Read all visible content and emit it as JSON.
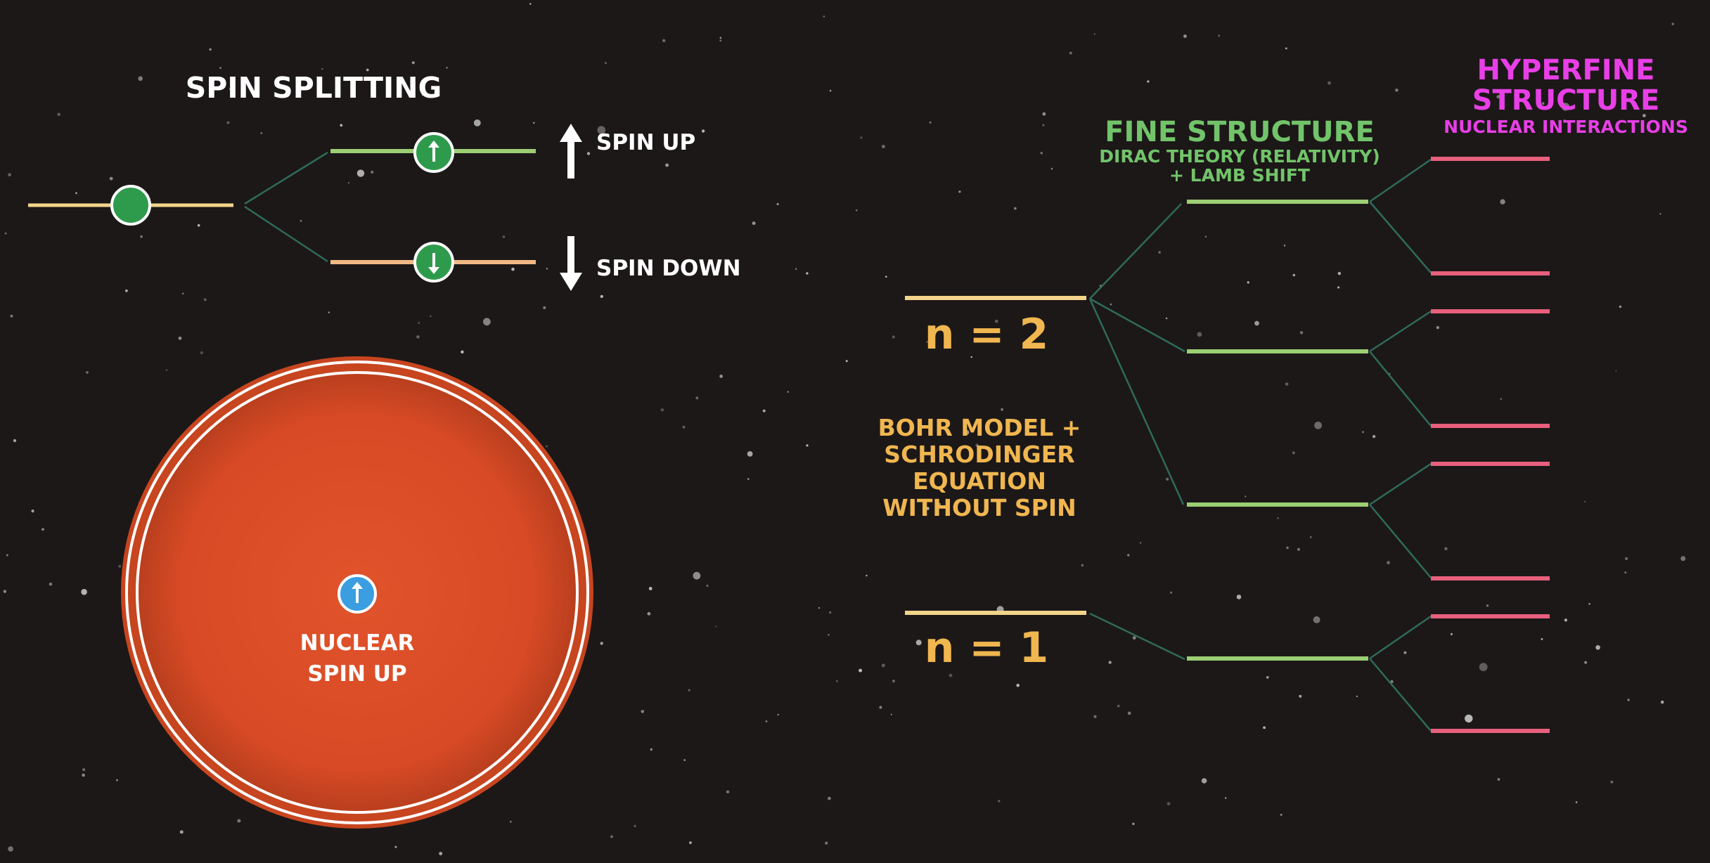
{
  "spin_splitting": {
    "title": "SPIN SPLITTING",
    "up_label": "SPIN UP",
    "down_label": "SPIN DOWN"
  },
  "nucleus": {
    "line1": "NUCLEAR",
    "line2": "SPIN UP"
  },
  "energy_levels": {
    "n2_label": "n = 2",
    "n1_label": "n = 1",
    "bohr_label": [
      "BOHR MODEL +",
      "SCHRODINGER",
      "EQUATION",
      "WITHOUT SPIN"
    ]
  },
  "fine_structure": {
    "title": "FINE STRUCTURE",
    "subtitle_line1": "DIRAC THEORY (RELATIVITY)",
    "subtitle_line2": "+ LAMB SHIFT"
  },
  "hyperfine_structure": {
    "title_line1": "HYPERFINE",
    "title_line2": "STRUCTURE",
    "subtitle": "NUCLEAR INTERACTIONS"
  },
  "colors": {
    "background": "#1c1818",
    "unperturbed_level": "#f2d48a",
    "fine_level": "#9ccf74",
    "hyperfine_level": "#e8607c",
    "connector": "#2f6b5b",
    "electron": "#2e9b4c",
    "nucleus": "#d9492a",
    "nuclear_spin": "#3a9ee0",
    "spin_down_level": "#f0b884"
  }
}
